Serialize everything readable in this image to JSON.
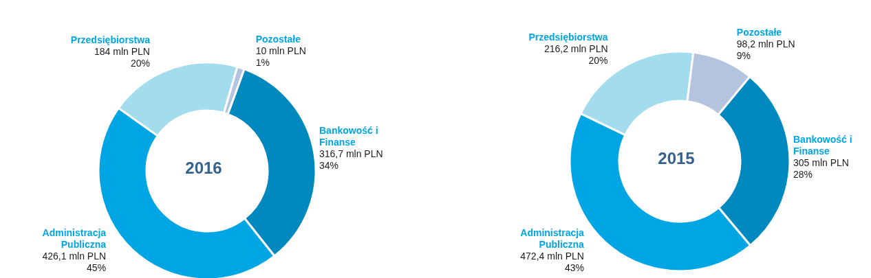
{
  "chart_data": [
    {
      "type": "donut",
      "title": "2016",
      "categories": [
        "Bankowość i Finanse",
        "Administracja Publiczna",
        "Przedsiębiorstwa",
        "Pozostałe"
      ],
      "values": [
        316.7,
        426.1,
        184,
        10
      ],
      "colors": [
        "#0089bf",
        "#00a5e3",
        "#a3dced",
        "#b4c3de"
      ],
      "value_labels": [
        "316,7 mln PLN\n34%",
        "426,1 mln PLN\n45%",
        "184 mln PLN\n20%",
        "10 mln PLN\n1%"
      ],
      "legend": false
    },
    {
      "type": "donut",
      "title": "2015",
      "categories": [
        "Bankowość i Finanse",
        "Administracja Publiczna",
        "Przedsiębiorstwa",
        "Pozostałe"
      ],
      "values": [
        305,
        472.4,
        216.2,
        98.2
      ],
      "colors": [
        "#0089bf",
        "#00a5e3",
        "#a3dced",
        "#b4c3de"
      ],
      "value_labels": [
        "305 mln PLN\n28%",
        "472,4 mln PLN\n43%",
        "216,2 mln PLN\n20%",
        "98,2 mln PLN\n9%"
      ],
      "legend": false
    }
  ]
}
